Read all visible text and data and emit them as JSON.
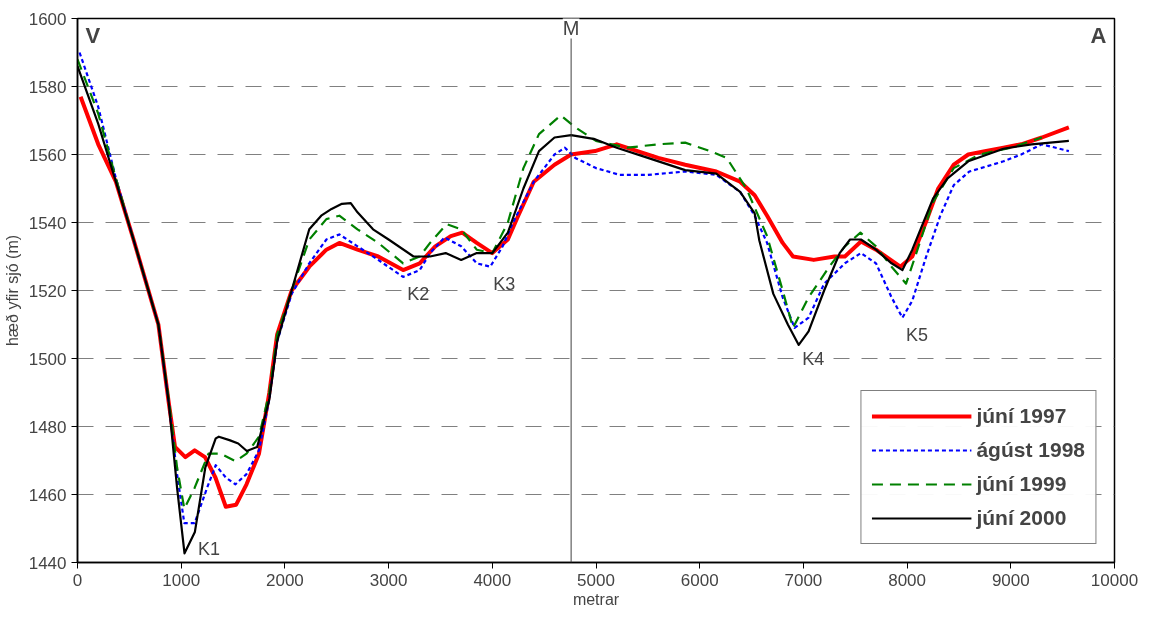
{
  "chart_data": {
    "type": "line",
    "xlabel": "metrar",
    "ylabel": "hæð yfir sjó (m)",
    "xlim": [
      0,
      10000
    ],
    "ylim": [
      1440,
      1600
    ],
    "xticks": [
      0,
      1000,
      2000,
      3000,
      4000,
      5000,
      6000,
      7000,
      8000,
      9000,
      10000
    ],
    "yticks": [
      1440,
      1460,
      1480,
      1500,
      1520,
      1540,
      1560,
      1580,
      1600
    ],
    "grid": "y",
    "legend": "bottom right",
    "ref_lines": [
      {
        "axis": "x",
        "value": 4760,
        "label": "M",
        "color": "#404040"
      }
    ],
    "annotations": [
      "V",
      "A",
      {
        "text": "K1",
        "x": 1132,
        "y": 1449
      },
      {
        "text": "K2",
        "x": 3150,
        "y": 1524
      },
      {
        "text": "K3",
        "x": 3980,
        "y": 1527
      },
      {
        "text": "K4",
        "x": 6960,
        "y": 1505
      },
      {
        "text": "K5",
        "x": 7960,
        "y": 1512
      }
    ],
    "series": [
      {
        "name": "júní 1997",
        "color": "#ff0000",
        "line_style": "solid",
        "x": [
          30,
          200,
          370,
          540,
          780,
          880,
          940,
          1040,
          1130,
          1230,
          1330,
          1430,
          1530,
          1630,
          1750,
          1850,
          1925,
          2065,
          2235,
          2400,
          2525,
          2700,
          2900,
          3140,
          3300,
          3450,
          3600,
          3710,
          3850,
          4000,
          4150,
          4250,
          4400,
          4600,
          4760,
          4990,
          5200,
          5400,
          5600,
          5860,
          6160,
          6390,
          6530,
          6650,
          6800,
          6900,
          7100,
          7300,
          7400,
          7555,
          7700,
          7935,
          8050,
          8180,
          8300,
          8450,
          8590,
          8750,
          8930,
          9100,
          9300,
          9560
        ],
        "values": [
          1577,
          1563,
          1552,
          1535,
          1510,
          1487,
          1474,
          1471,
          1473,
          1471,
          1465,
          1456.4,
          1457,
          1463,
          1472,
          1490,
          1507,
          1520,
          1527,
          1532,
          1534,
          1532,
          1530,
          1526,
          1528,
          1533,
          1536,
          1537,
          1534,
          1531,
          1535,
          1542,
          1552,
          1557,
          1560,
          1561,
          1563,
          1561,
          1559,
          1557,
          1555,
          1552,
          1548,
          1542,
          1534,
          1530,
          1529,
          1530,
          1530,
          1534.4,
          1532,
          1527,
          1530,
          1540,
          1550,
          1557,
          1560,
          1561,
          1562,
          1563,
          1565,
          1568
        ]
      },
      {
        "name": "ágúst 1998",
        "color": "#0000ff",
        "line_style": "dotted",
        "x": [
          20,
          200,
          370,
          540,
          780,
          880,
          960,
          1030,
          1130,
          1250,
          1333,
          1430,
          1523,
          1630,
          1750,
          1850,
          1925,
          2065,
          2235,
          2400,
          2525,
          2700,
          2900,
          3140,
          3300,
          3400,
          3540,
          3700,
          3850,
          3980,
          4100,
          4200,
          4400,
          4600,
          4700,
          4800,
          5000,
          5230,
          5500,
          5860,
          6160,
          6390,
          6530,
          6650,
          6800,
          6915,
          7050,
          7200,
          7400,
          7555,
          7700,
          7850,
          7955,
          8050,
          8180,
          8320,
          8450,
          8600,
          8930,
          9100,
          9300,
          9560
        ],
        "values": [
          1590,
          1574,
          1553,
          1535,
          1510,
          1487,
          1466,
          1451.6,
          1451.6,
          1462,
          1468.6,
          1465,
          1463,
          1466,
          1473,
          1488,
          1505,
          1519,
          1528,
          1535,
          1536.5,
          1533,
          1529,
          1524,
          1526,
          1531,
          1535.6,
          1533,
          1528,
          1527,
          1533,
          1540,
          1552,
          1560,
          1562,
          1559,
          1556,
          1554,
          1554,
          1555,
          1554,
          1549,
          1542,
          1534,
          1518,
          1509,
          1512,
          1522,
          1528,
          1531,
          1528,
          1518,
          1512,
          1517,
          1529.6,
          1542,
          1551,
          1555,
          1558,
          1560,
          1563,
          1561
        ]
      },
      {
        "name": "júní 1999",
        "color": "#008000",
        "line_style": "dashed",
        "x": [
          0,
          200,
          370,
          540,
          780,
          880,
          960,
          1030,
          1130,
          1263,
          1380,
          1523,
          1630,
          1750,
          1850,
          1925,
          2065,
          2235,
          2400,
          2525,
          2700,
          2900,
          3140,
          3300,
          3400,
          3560,
          3700,
          3850,
          4000,
          4150,
          4300,
          4450,
          4660,
          4800,
          5000,
          5300,
          5600,
          5860,
          6100,
          6260,
          6450,
          6650,
          6800,
          6900,
          7050,
          7250,
          7400,
          7550,
          7700,
          7850,
          7990,
          8100,
          8250,
          8450,
          8700,
          9000,
          9300
        ],
        "values": [
          1588,
          1572,
          1553,
          1535,
          1510,
          1488,
          1468,
          1455.8,
          1462,
          1472,
          1472,
          1469.8,
          1472,
          1477,
          1490,
          1507,
          1520,
          1535,
          1541,
          1542,
          1538,
          1534,
          1528,
          1530,
          1534,
          1539.5,
          1538,
          1532,
          1531,
          1540,
          1556,
          1566,
          1571.5,
          1568,
          1564,
          1562,
          1563,
          1563.5,
          1561,
          1559,
          1550,
          1536,
          1520,
          1509,
          1518,
          1527,
          1533,
          1537,
          1533,
          1527,
          1522,
          1532,
          1546,
          1556,
          1560,
          1562,
          1565
        ]
      },
      {
        "name": "júní 2000",
        "color": "#000000",
        "line_style": "solid",
        "x": [
          0,
          200,
          370,
          540,
          780,
          880,
          960,
          1032,
          1132,
          1233,
          1333,
          1363,
          1465,
          1550,
          1633,
          1733,
          1850,
          1925,
          2065,
          2235,
          2350,
          2450,
          2550,
          2635,
          2700,
          2850,
          3000,
          3240,
          3400,
          3550,
          3700,
          3850,
          4000,
          4150,
          4300,
          4450,
          4600,
          4760,
          4990,
          5200,
          5500,
          5860,
          6160,
          6390,
          6530,
          6575,
          6710,
          6850,
          6955,
          7050,
          7200,
          7350,
          7450,
          7555,
          7700,
          7850,
          7955,
          8050,
          8250,
          8390,
          8590,
          8930,
          9200,
          9560
        ],
        "values": [
          1586,
          1569,
          1552,
          1535,
          1510,
          1487,
          1462,
          1442.7,
          1449,
          1468,
          1476.5,
          1477,
          1476,
          1475,
          1472.8,
          1474,
          1488,
          1505,
          1520,
          1538,
          1542,
          1544,
          1545.5,
          1545.7,
          1543,
          1538,
          1535,
          1530,
          1530,
          1531,
          1529,
          1531,
          1531,
          1537,
          1550,
          1561,
          1565,
          1565.7,
          1564.5,
          1562,
          1559,
          1555.4,
          1554.4,
          1549,
          1542.7,
          1534.7,
          1519,
          1510,
          1504,
          1508,
          1520,
          1531,
          1535,
          1535,
          1532,
          1528,
          1526,
          1532,
          1547,
          1553,
          1558,
          1561.7,
          1563,
          1564
        ]
      }
    ]
  }
}
